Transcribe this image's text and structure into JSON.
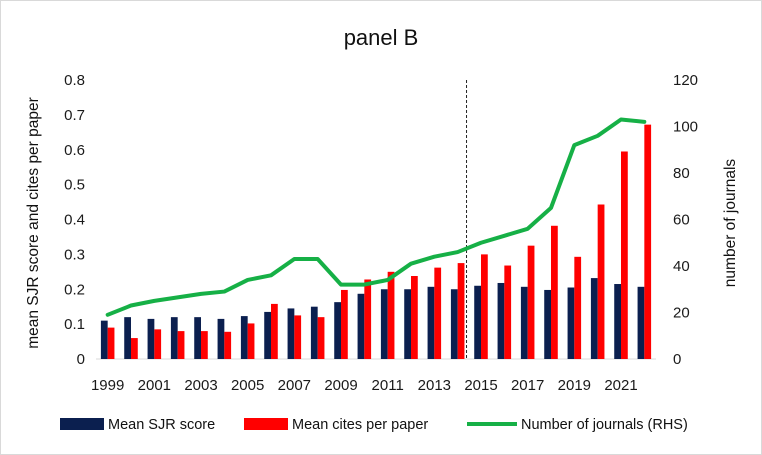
{
  "chart_data": {
    "type": "bar",
    "title": "panel B",
    "ylabel": "mean SJR score and cites per paper",
    "y2label": "number of journals",
    "ylim": [
      0,
      0.8
    ],
    "y2lim": [
      0,
      120
    ],
    "yticks": [
      "0",
      "0.1",
      "0.2",
      "0.3",
      "0.4",
      "0.5",
      "0.6",
      "0.7",
      "0.8"
    ],
    "y2ticks": [
      "0",
      "20",
      "40",
      "60",
      "80",
      "100",
      "120"
    ],
    "categories": [
      "1999",
      "2000",
      "2001",
      "2002",
      "2003",
      "2004",
      "2005",
      "2006",
      "2007",
      "2008",
      "2009",
      "2010",
      "2011",
      "2012",
      "2013",
      "2014",
      "2015",
      "2016",
      "2017",
      "2018",
      "2019",
      "2020",
      "2021",
      "2022"
    ],
    "x_tick_labels": [
      "1999",
      "2001",
      "2003",
      "2005",
      "2007",
      "2009",
      "2011",
      "2013",
      "2015",
      "2017",
      "2019",
      "2021"
    ],
    "series": [
      {
        "name": "Mean SJR score",
        "type": "bar",
        "axis": "left",
        "color": "#0b1f4f",
        "values": [
          0.11,
          0.12,
          0.115,
          0.12,
          0.12,
          0.115,
          0.123,
          0.135,
          0.145,
          0.15,
          0.163,
          0.187,
          0.2,
          0.2,
          0.207,
          0.2,
          0.21,
          0.218,
          0.207,
          0.198,
          0.205,
          0.232,
          0.215,
          0.207
        ]
      },
      {
        "name": "Mean cites per paper",
        "type": "bar",
        "axis": "left",
        "color": "#ff0000",
        "values": [
          0.09,
          0.06,
          0.085,
          0.08,
          0.08,
          0.078,
          0.102,
          0.158,
          0.125,
          0.12,
          0.198,
          0.228,
          0.25,
          0.238,
          0.262,
          0.275,
          0.3,
          0.268,
          0.325,
          0.382,
          0.293,
          0.443,
          0.595,
          0.672
        ]
      },
      {
        "name": "Number of journals (RHS)",
        "type": "line",
        "axis": "right",
        "color": "#16b046",
        "values": [
          19,
          23,
          25,
          26.5,
          28,
          29,
          34,
          36,
          43,
          43,
          32,
          32,
          34,
          41,
          44,
          46,
          50,
          53,
          56,
          65,
          92,
          96,
          103,
          102
        ]
      }
    ],
    "reference_line_between": [
      "2014",
      "2015"
    ],
    "legend_position": "bottom",
    "grid": false
  }
}
